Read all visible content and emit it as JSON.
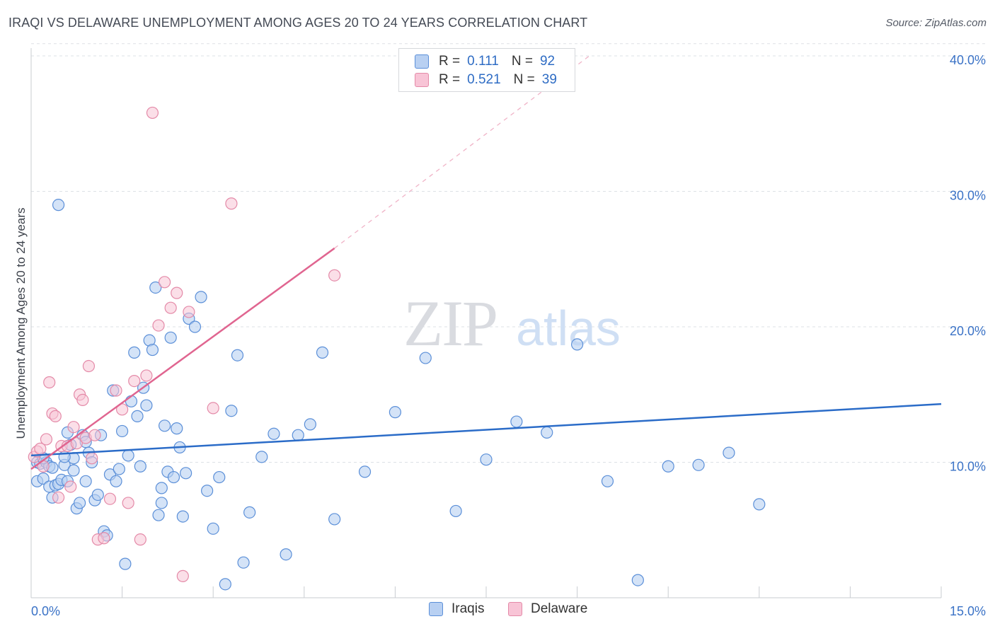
{
  "title": "IRAQI VS DELAWARE UNEMPLOYMENT AMONG AGES 20 TO 24 YEARS CORRELATION CHART",
  "source": "Source: ZipAtlas.com",
  "watermark": {
    "zip": "ZIP",
    "atlas": "atlas"
  },
  "colors": {
    "iraqis_fill": "#b8d0f2",
    "iraqis_stroke": "#5b8fd8",
    "iraqis_line": "#2b6cc8",
    "delaware_fill": "#f8c4d6",
    "delaware_stroke": "#e48aa8",
    "delaware_line": "#e06590",
    "grid": "#dde1e6",
    "axis_text": "#3a72c6"
  },
  "legend": {
    "rows": [
      {
        "r_label": "R =",
        "r_value": "0.111",
        "n_label": "N =",
        "n_value": "92"
      },
      {
        "r_label": "R =",
        "r_value": "0.521",
        "n_label": "N =",
        "n_value": "39"
      }
    ]
  },
  "chart_data": {
    "type": "scatter",
    "title": "IRAQI VS DELAWARE UNEMPLOYMENT AMONG AGES 20 TO 24 YEARS CORRELATION CHART",
    "xlabel": "",
    "ylabel": "Unemployment Among Ages 20 to 24 years",
    "xlim": [
      0,
      15
    ],
    "ylim": [
      0,
      42
    ],
    "x_tick_labels": [
      "0.0%",
      "15.0%"
    ],
    "y_ticks": [
      10,
      20,
      30,
      40
    ],
    "y_tick_labels": [
      "10.0%",
      "20.0%",
      "30.0%",
      "40.0%"
    ],
    "grid": true,
    "legend_position": "top-center",
    "series": [
      {
        "name": "Iraqis",
        "R": 0.111,
        "N": 92,
        "trend": {
          "x": [
            0.0,
            15.0
          ],
          "y": [
            10.5,
            14.3
          ]
        },
        "x": [
          0.1,
          0.1,
          0.15,
          0.2,
          0.25,
          0.3,
          0.3,
          0.35,
          0.4,
          0.45,
          0.5,
          0.55,
          0.6,
          0.6,
          0.65,
          0.7,
          0.7,
          0.75,
          0.8,
          0.85,
          0.9,
          0.9,
          0.95,
          1.0,
          1.05,
          1.1,
          1.15,
          1.2,
          1.25,
          1.3,
          1.4,
          1.45,
          1.5,
          1.55,
          1.6,
          1.65,
          1.7,
          1.75,
          1.8,
          1.85,
          1.9,
          1.95,
          2.0,
          2.05,
          2.1,
          2.15,
          2.2,
          2.25,
          2.3,
          2.35,
          2.4,
          2.45,
          2.5,
          2.55,
          2.6,
          2.7,
          2.8,
          2.9,
          3.0,
          3.1,
          3.2,
          3.3,
          3.4,
          3.5,
          3.6,
          3.8,
          4.0,
          4.2,
          4.4,
          4.6,
          4.8,
          5.0,
          5.5,
          6.0,
          6.5,
          7.0,
          7.5,
          8.0,
          8.5,
          9.0,
          9.5,
          10.0,
          10.5,
          11.0,
          11.5,
          12.0,
          0.2,
          0.35,
          0.55,
          1.35,
          2.15,
          0.45
        ],
        "y": [
          10.0,
          8.6,
          9.9,
          8.8,
          10.0,
          8.2,
          9.7,
          7.4,
          8.3,
          8.4,
          8.7,
          9.8,
          12.2,
          8.6,
          11.3,
          9.4,
          10.3,
          6.6,
          7.0,
          12.0,
          8.6,
          11.5,
          10.7,
          10.0,
          7.2,
          7.6,
          12.0,
          4.9,
          4.6,
          9.1,
          8.6,
          9.5,
          12.3,
          2.5,
          10.5,
          14.5,
          18.1,
          13.4,
          9.7,
          15.5,
          14.2,
          19.0,
          18.3,
          22.9,
          6.1,
          7.0,
          12.7,
          9.3,
          19.2,
          8.9,
          12.5,
          11.1,
          6.0,
          9.2,
          20.6,
          20.0,
          22.2,
          7.9,
          5.1,
          8.9,
          1.0,
          13.8,
          17.9,
          2.6,
          6.3,
          10.4,
          12.1,
          3.2,
          12.0,
          12.8,
          18.1,
          5.8,
          9.3,
          13.7,
          17.7,
          6.4,
          10.2,
          13.0,
          12.2,
          18.7,
          8.6,
          1.3,
          9.7,
          9.8,
          10.7,
          6.9,
          10.3,
          9.6,
          10.4,
          15.3,
          8.1,
          29.0
        ],
        "x_adj": [
          0.1,
          0.1,
          0.15,
          0.2,
          0.25,
          0.3,
          0.3,
          0.35,
          0.4,
          0.45,
          0.5,
          0.55,
          0.6,
          0.6,
          0.65,
          0.7,
          0.7,
          0.75,
          0.8,
          0.85,
          0.9,
          0.9,
          0.95,
          1.0,
          1.05,
          1.1,
          1.15,
          1.2,
          1.25,
          1.3,
          1.4,
          1.45,
          1.5,
          1.55,
          1.6,
          1.65,
          1.7,
          1.75,
          1.8,
          1.85,
          1.9,
          1.95,
          2.0,
          2.05,
          2.1,
          2.15,
          2.2,
          2.25,
          2.3,
          2.35,
          2.4,
          2.45,
          2.5,
          2.55,
          2.6,
          2.7,
          2.8,
          2.9,
          3.0,
          3.1,
          3.2,
          3.3,
          3.4,
          3.5,
          3.6,
          3.8,
          4.0,
          4.2,
          4.4,
          4.6,
          4.8,
          5.0,
          5.5,
          6.0,
          6.5,
          7.0,
          7.5,
          8.0,
          8.5,
          9.0,
          9.5,
          10.0,
          10.5,
          11.0,
          11.5,
          12.0,
          0.2,
          0.35,
          0.55,
          1.35,
          2.15,
          0.45
        ]
      },
      {
        "name": "Delaware",
        "R": 0.521,
        "N": 39,
        "trend": {
          "x": [
            0.0,
            5.0
          ],
          "y": [
            9.5,
            25.8
          ]
        },
        "trend_extension": {
          "x": [
            5.0,
            9.2
          ],
          "y": [
            25.8,
            40.0
          ]
        },
        "x": [
          0.05,
          0.1,
          0.15,
          0.2,
          0.25,
          0.3,
          0.35,
          0.4,
          0.45,
          0.5,
          0.6,
          0.65,
          0.7,
          0.75,
          0.8,
          0.85,
          0.9,
          0.95,
          1.0,
          1.05,
          1.1,
          1.2,
          1.3,
          1.4,
          1.5,
          1.6,
          1.7,
          1.8,
          1.9,
          2.0,
          2.1,
          2.2,
          2.3,
          2.4,
          2.5,
          2.6,
          3.0,
          3.3,
          5.0
        ],
        "y": [
          10.4,
          10.8,
          11.0,
          9.7,
          11.7,
          15.9,
          13.6,
          13.4,
          7.4,
          11.2,
          11.2,
          8.2,
          12.6,
          11.4,
          15.0,
          14.6,
          11.8,
          17.1,
          10.3,
          12.0,
          4.3,
          4.4,
          7.3,
          15.3,
          13.9,
          7.0,
          16.0,
          4.3,
          16.4,
          35.8,
          20.1,
          23.3,
          21.4,
          22.5,
          1.6,
          21.1,
          14.0,
          29.1,
          23.8
        ]
      }
    ]
  },
  "bottom_legend": [
    "Iraqis",
    "Delaware"
  ]
}
